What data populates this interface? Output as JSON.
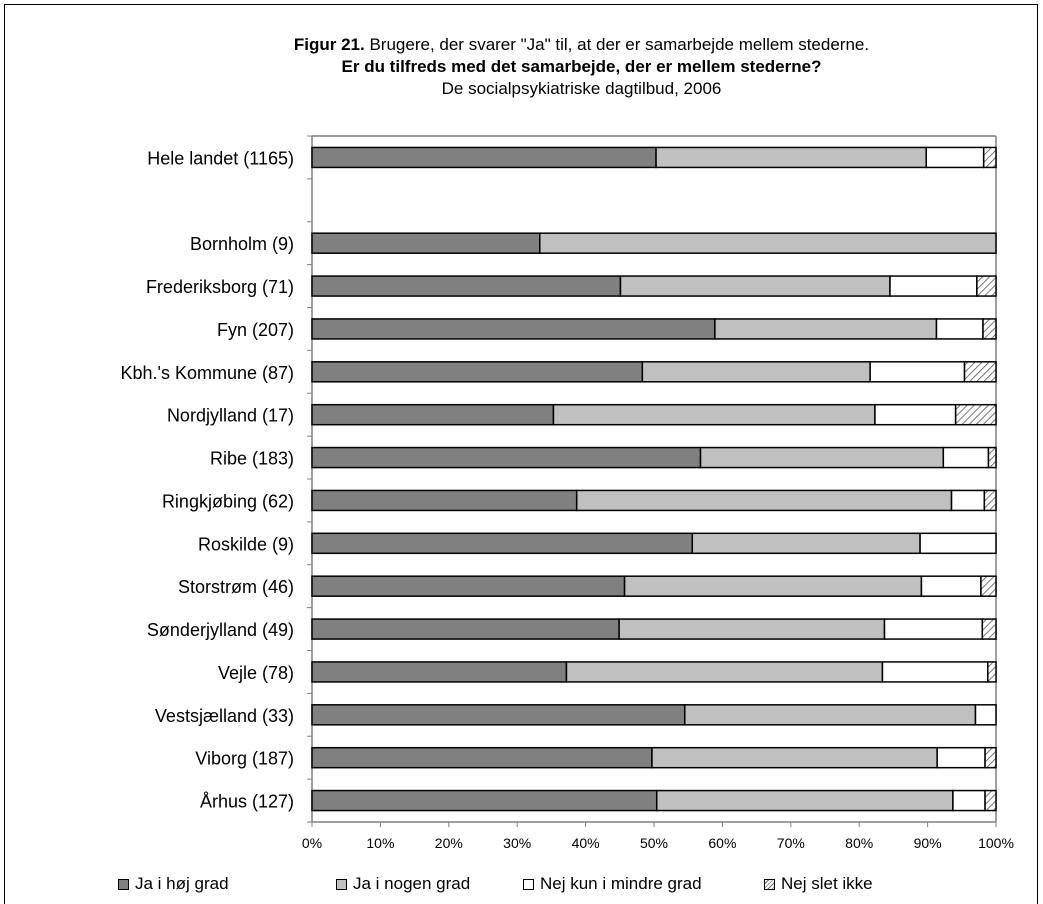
{
  "chart_data": {
    "type": "bar",
    "orientation": "horizontal",
    "stacked": true,
    "title_prefix": "Figur 21.",
    "title_rest": " Brugere, der svarer \"Ja\" til, at der er samarbejde mellem stederne.",
    "subtitle": "Er du tilfreds med det samarbejde, der er mellem stederne?",
    "subtitle2": "De socialpsykiatriske dagtilbud, 2006",
    "categories": [
      "Hele landet (1165)",
      "",
      "Bornholm (9)",
      "Frederiksborg (71)",
      "Fyn (207)",
      "Kbh.'s Kommune (87)",
      "Nordjylland (17)",
      "Ribe (183)",
      "Ringkjøbing (62)",
      "Roskilde (9)",
      "Storstrøm (46)",
      "Sønderjylland (49)",
      "Vejle (78)",
      "Vestsjælland (33)",
      "Viborg (187)",
      "Århus (127)"
    ],
    "series": [
      {
        "name": "Ja i høj grad",
        "color": "#808080",
        "values": [
          50.3,
          null,
          33.3,
          45.1,
          58.9,
          48.3,
          35.3,
          56.8,
          38.7,
          55.6,
          45.7,
          44.9,
          37.2,
          54.5,
          49.7,
          50.4
        ]
      },
      {
        "name": "Ja i nogen grad",
        "color": "#c0c0c0",
        "values": [
          39.5,
          null,
          66.7,
          39.4,
          32.4,
          33.3,
          47.0,
          35.5,
          54.8,
          33.3,
          43.4,
          38.8,
          46.2,
          42.5,
          41.7,
          43.3
        ]
      },
      {
        "name": "Nej kun i mindre grad",
        "color": "#ffffff",
        "values": [
          8.4,
          null,
          0,
          12.7,
          6.8,
          13.8,
          11.8,
          6.6,
          4.8,
          11.1,
          8.7,
          14.3,
          15.4,
          3.0,
          7.0,
          4.7
        ]
      },
      {
        "name": "Nej slet ikke",
        "color": "hatch",
        "values": [
          1.8,
          null,
          0,
          2.8,
          1.9,
          4.6,
          5.9,
          1.1,
          1.7,
          0,
          2.2,
          2.0,
          1.2,
          0,
          1.6,
          1.6
        ]
      }
    ],
    "xlim": [
      0,
      100
    ],
    "x_ticks": [
      "0%",
      "10%",
      "20%",
      "30%",
      "40%",
      "50%",
      "60%",
      "70%",
      "80%",
      "90%",
      "100%"
    ],
    "legend_position": "bottom"
  },
  "legend": [
    {
      "label": "Ja i høj grad"
    },
    {
      "label": "Ja i nogen grad"
    },
    {
      "label": "Nej kun i mindre grad"
    },
    {
      "label": "Nej slet ikke"
    }
  ]
}
